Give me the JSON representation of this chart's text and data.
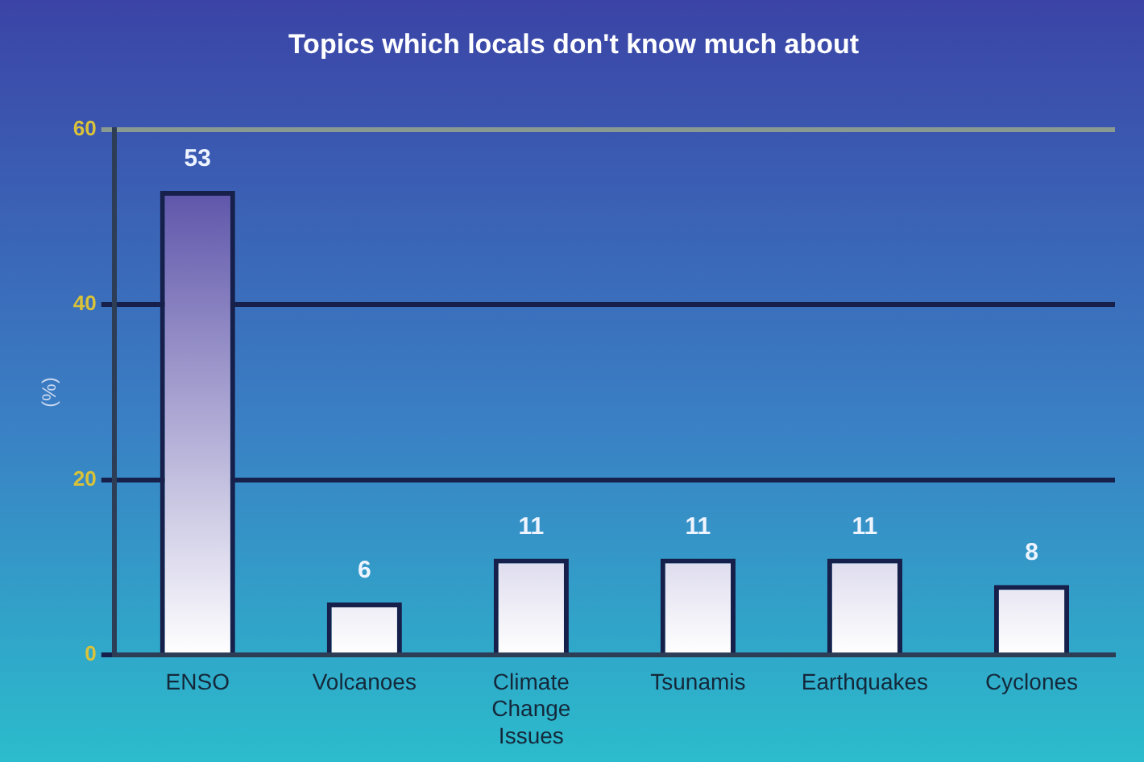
{
  "chart_data": {
    "type": "bar",
    "title": "Topics which locals don't know much about",
    "ylabel": "(%)",
    "categories": [
      "ENSO",
      "Volcanoes",
      "Climate Change Issues",
      "Tsunamis",
      "Earthquakes",
      "Cyclones"
    ],
    "values": [
      53,
      6,
      11,
      11,
      11,
      8
    ],
    "color": "#16204a",
    "ylim": [
      0,
      60
    ],
    "yticks": [
      0,
      20,
      40,
      60
    ],
    "grid": "y",
    "data_labels": true
  }
}
